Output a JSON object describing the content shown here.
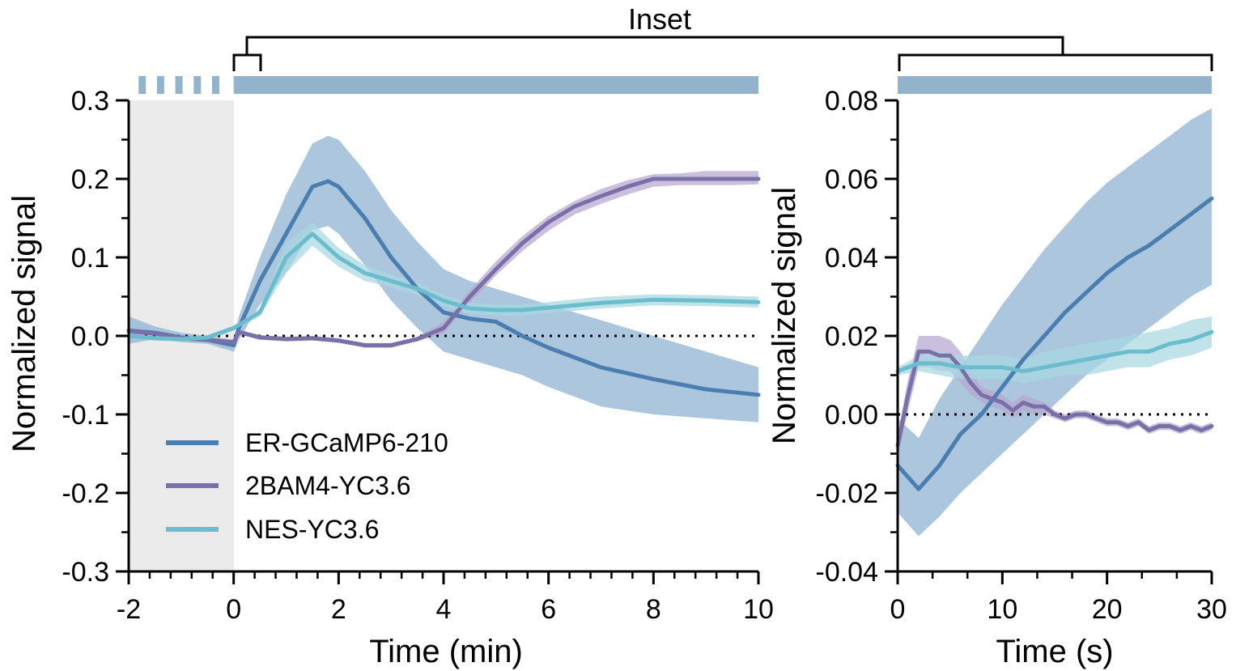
{
  "chart_data": [
    {
      "id": "main",
      "type": "line",
      "xlabel": "Time (min)",
      "ylabel": "Normalized signal",
      "xlim": [
        -2,
        10
      ],
      "ylim": [
        -0.3,
        0.3
      ],
      "x_ticks": [
        -2,
        0,
        2,
        4,
        6,
        8,
        10
      ],
      "x_tick_labels": [
        "-2",
        "0",
        "2",
        "4",
        "6",
        "8",
        "10"
      ],
      "y_ticks": [
        -0.3,
        -0.2,
        -0.1,
        0.0,
        0.1,
        0.2,
        0.3
      ],
      "y_tick_labels": [
        "-0.3",
        "-0.2",
        "-0.1",
        "0.0",
        "0.1",
        "0.2",
        "0.3"
      ],
      "shaded_region": [
        -2,
        0
      ],
      "baseline": 0,
      "stimulus_bar": {
        "dashed_range": [
          -1.75,
          0
        ],
        "solid_range": [
          0,
          10
        ]
      },
      "legend": {
        "position": "bottom-left",
        "entries": [
          "ER-GCaMP6-210",
          "2BAM4-YC3.6",
          "NES-YC3.6"
        ]
      },
      "series": [
        {
          "name": "ER-GCaMP6-210",
          "color": "#4a7eb0",
          "band_color": "#8ab0d0",
          "x": [
            -2,
            -1.5,
            -1,
            -0.5,
            0,
            0.1,
            0.5,
            1,
            1.5,
            1.8,
            2,
            2.5,
            3,
            3.5,
            4,
            4.5,
            5,
            5.5,
            6,
            7,
            8,
            9,
            10
          ],
          "y": [
            0.007,
            0.004,
            -0.002,
            -0.005,
            -0.012,
            0.01,
            0.07,
            0.13,
            0.19,
            0.197,
            0.19,
            0.15,
            0.1,
            0.06,
            0.03,
            0.022,
            0.018,
            0.0,
            -0.015,
            -0.04,
            -0.055,
            -0.068,
            -0.075
          ],
          "upper": [
            0.025,
            0.012,
            0.004,
            0.0,
            -0.005,
            0.025,
            0.1,
            0.18,
            0.245,
            0.255,
            0.25,
            0.21,
            0.16,
            0.12,
            0.085,
            0.07,
            0.06,
            0.05,
            0.04,
            0.02,
            0.0,
            -0.02,
            -0.04
          ],
          "lower": [
            -0.01,
            -0.004,
            -0.008,
            -0.01,
            -0.02,
            -0.005,
            0.04,
            0.08,
            0.135,
            0.14,
            0.13,
            0.09,
            0.045,
            0.01,
            -0.02,
            -0.03,
            -0.04,
            -0.05,
            -0.065,
            -0.09,
            -0.1,
            -0.105,
            -0.11
          ]
        },
        {
          "name": "2BAM4-YC3.6",
          "color": "#7a70a8",
          "band_color": "#b5a8d0",
          "x": [
            -2,
            -1.5,
            -1,
            -0.5,
            0,
            0.1,
            0.5,
            1,
            1.5,
            2,
            2.5,
            3,
            3.5,
            4,
            4.5,
            5,
            5.5,
            6,
            6.5,
            7,
            7.5,
            8,
            8.5,
            9,
            9.5,
            10
          ],
          "y": [
            0.006,
            0.003,
            -0.003,
            -0.005,
            -0.008,
            0.005,
            -0.002,
            -0.004,
            -0.003,
            -0.006,
            -0.012,
            -0.012,
            -0.004,
            0.01,
            0.05,
            0.085,
            0.118,
            0.145,
            0.165,
            0.178,
            0.19,
            0.2,
            0.2,
            0.2,
            0.2,
            0.2
          ],
          "upper": [
            0.008,
            0.005,
            -0.001,
            -0.003,
            -0.005,
            0.008,
            0.001,
            -0.001,
            0.0,
            -0.003,
            -0.009,
            -0.009,
            -0.001,
            0.018,
            0.058,
            0.095,
            0.127,
            0.153,
            0.172,
            0.187,
            0.198,
            0.206,
            0.207,
            0.21,
            0.21,
            0.21
          ],
          "lower": [
            0.004,
            0.001,
            -0.005,
            -0.007,
            -0.011,
            0.002,
            -0.005,
            -0.007,
            -0.006,
            -0.009,
            -0.015,
            -0.015,
            -0.007,
            0.003,
            0.042,
            0.077,
            0.108,
            0.134,
            0.155,
            0.168,
            0.18,
            0.19,
            0.192,
            0.192,
            0.192,
            0.193
          ]
        },
        {
          "name": "NES-YC3.6",
          "color": "#6bbccc",
          "band_color": "#a8d8e2",
          "x": [
            -2,
            -1.5,
            -1,
            -0.5,
            0,
            0.5,
            1,
            1.5,
            2,
            2.5,
            3,
            3.5,
            4,
            4.5,
            5,
            5.5,
            6,
            7,
            8,
            9,
            10
          ],
          "y": [
            0.0,
            -0.003,
            -0.004,
            -0.002,
            0.01,
            0.03,
            0.1,
            0.13,
            0.1,
            0.08,
            0.07,
            0.06,
            0.045,
            0.035,
            0.033,
            0.033,
            0.036,
            0.042,
            0.046,
            0.045,
            0.043
          ],
          "upper": [
            0.003,
            0.0,
            -0.001,
            0.001,
            0.013,
            0.035,
            0.118,
            0.145,
            0.112,
            0.09,
            0.078,
            0.068,
            0.052,
            0.042,
            0.04,
            0.04,
            0.043,
            0.05,
            0.053,
            0.052,
            0.05
          ],
          "lower": [
            -0.003,
            -0.006,
            -0.007,
            -0.005,
            0.007,
            0.025,
            0.08,
            0.115,
            0.088,
            0.07,
            0.062,
            0.052,
            0.038,
            0.028,
            0.026,
            0.026,
            0.029,
            0.035,
            0.039,
            0.038,
            0.036
          ]
        }
      ]
    },
    {
      "id": "inset",
      "type": "line",
      "title": "Inset",
      "xlabel": "Time (s)",
      "ylabel": "Normalized signal",
      "xlim": [
        0,
        30
      ],
      "ylim": [
        -0.04,
        0.08
      ],
      "x_ticks": [
        0,
        10,
        20,
        30
      ],
      "x_tick_labels": [
        "0",
        "10",
        "20",
        "30"
      ],
      "y_ticks": [
        -0.04,
        -0.02,
        0.0,
        0.02,
        0.04,
        0.06,
        0.08
      ],
      "y_tick_labels": [
        "-0.04",
        "-0.02",
        "0.00",
        "0.02",
        "0.04",
        "0.06",
        "0.08"
      ],
      "baseline": 0,
      "stimulus_bar": {
        "solid_range": [
          0,
          30
        ]
      },
      "series": [
        {
          "name": "ER-GCaMP6-210",
          "color": "#4a7eb0",
          "band_color": "#8ab0d0",
          "x": [
            0,
            2,
            4,
            6,
            8,
            10,
            12,
            14,
            16,
            18,
            20,
            22,
            24,
            26,
            28,
            30
          ],
          "y": [
            -0.013,
            -0.019,
            -0.013,
            -0.005,
            0.0,
            0.007,
            0.014,
            0.02,
            0.026,
            0.031,
            0.036,
            0.04,
            0.043,
            0.047,
            0.051,
            0.055
          ],
          "upper": [
            -0.001,
            -0.006,
            0.004,
            0.012,
            0.02,
            0.028,
            0.035,
            0.042,
            0.048,
            0.054,
            0.059,
            0.063,
            0.067,
            0.071,
            0.075,
            0.078
          ],
          "lower": [
            -0.025,
            -0.031,
            -0.026,
            -0.02,
            -0.015,
            -0.01,
            -0.005,
            0.0,
            0.005,
            0.01,
            0.014,
            0.018,
            0.022,
            0.026,
            0.03,
            0.033
          ]
        },
        {
          "name": "2BAM4-YC3.6",
          "color": "#7a70a8",
          "band_color": "#b5a8d0",
          "x": [
            0,
            1,
            2,
            3,
            4,
            5,
            6,
            7,
            8,
            9,
            10,
            11,
            12,
            13,
            14,
            15,
            16,
            17,
            18,
            19,
            20,
            21,
            22,
            23,
            24,
            25,
            26,
            27,
            28,
            29,
            30
          ],
          "y": [
            -0.008,
            0.005,
            0.016,
            0.016,
            0.015,
            0.015,
            0.012,
            0.008,
            0.005,
            0.004,
            0.003,
            0.001,
            0.003,
            0.002,
            0.002,
            0.0,
            -0.001,
            0.0,
            0.0,
            -0.001,
            -0.002,
            -0.002,
            -0.003,
            -0.002,
            -0.004,
            -0.003,
            -0.003,
            -0.004,
            -0.003,
            -0.004,
            -0.003
          ],
          "upper": [
            -0.005,
            0.009,
            0.02,
            0.02,
            0.02,
            0.019,
            0.016,
            0.011,
            0.007,
            0.006,
            0.005,
            0.003,
            0.005,
            0.004,
            0.003,
            0.001,
            0.0,
            0.001,
            0.001,
            0.0,
            -0.001,
            -0.001,
            -0.002,
            -0.001,
            -0.003,
            -0.002,
            -0.002,
            -0.003,
            -0.002,
            -0.003,
            -0.002
          ],
          "lower": [
            -0.011,
            0.001,
            0.012,
            0.012,
            0.011,
            0.011,
            0.008,
            0.005,
            0.003,
            0.002,
            0.001,
            -0.001,
            0.001,
            0.0,
            0.0,
            -0.001,
            -0.002,
            -0.001,
            -0.001,
            -0.002,
            -0.003,
            -0.003,
            -0.004,
            -0.003,
            -0.005,
            -0.004,
            -0.004,
            -0.005,
            -0.004,
            -0.005,
            -0.004
          ]
        },
        {
          "name": "NES-YC3.6",
          "color": "#6bbccc",
          "band_color": "#a8d8e2",
          "x": [
            0,
            2,
            4,
            6,
            8,
            10,
            12,
            14,
            16,
            18,
            20,
            22,
            24,
            26,
            28,
            30
          ],
          "y": [
            0.011,
            0.013,
            0.013,
            0.012,
            0.012,
            0.012,
            0.011,
            0.012,
            0.013,
            0.014,
            0.015,
            0.016,
            0.016,
            0.018,
            0.019,
            0.021
          ],
          "upper": [
            0.012,
            0.015,
            0.016,
            0.015,
            0.015,
            0.015,
            0.014,
            0.016,
            0.017,
            0.018,
            0.019,
            0.02,
            0.021,
            0.022,
            0.024,
            0.025
          ],
          "lower": [
            0.01,
            0.011,
            0.01,
            0.009,
            0.009,
            0.009,
            0.008,
            0.009,
            0.01,
            0.01,
            0.011,
            0.012,
            0.012,
            0.014,
            0.015,
            0.017
          ]
        }
      ]
    }
  ]
}
